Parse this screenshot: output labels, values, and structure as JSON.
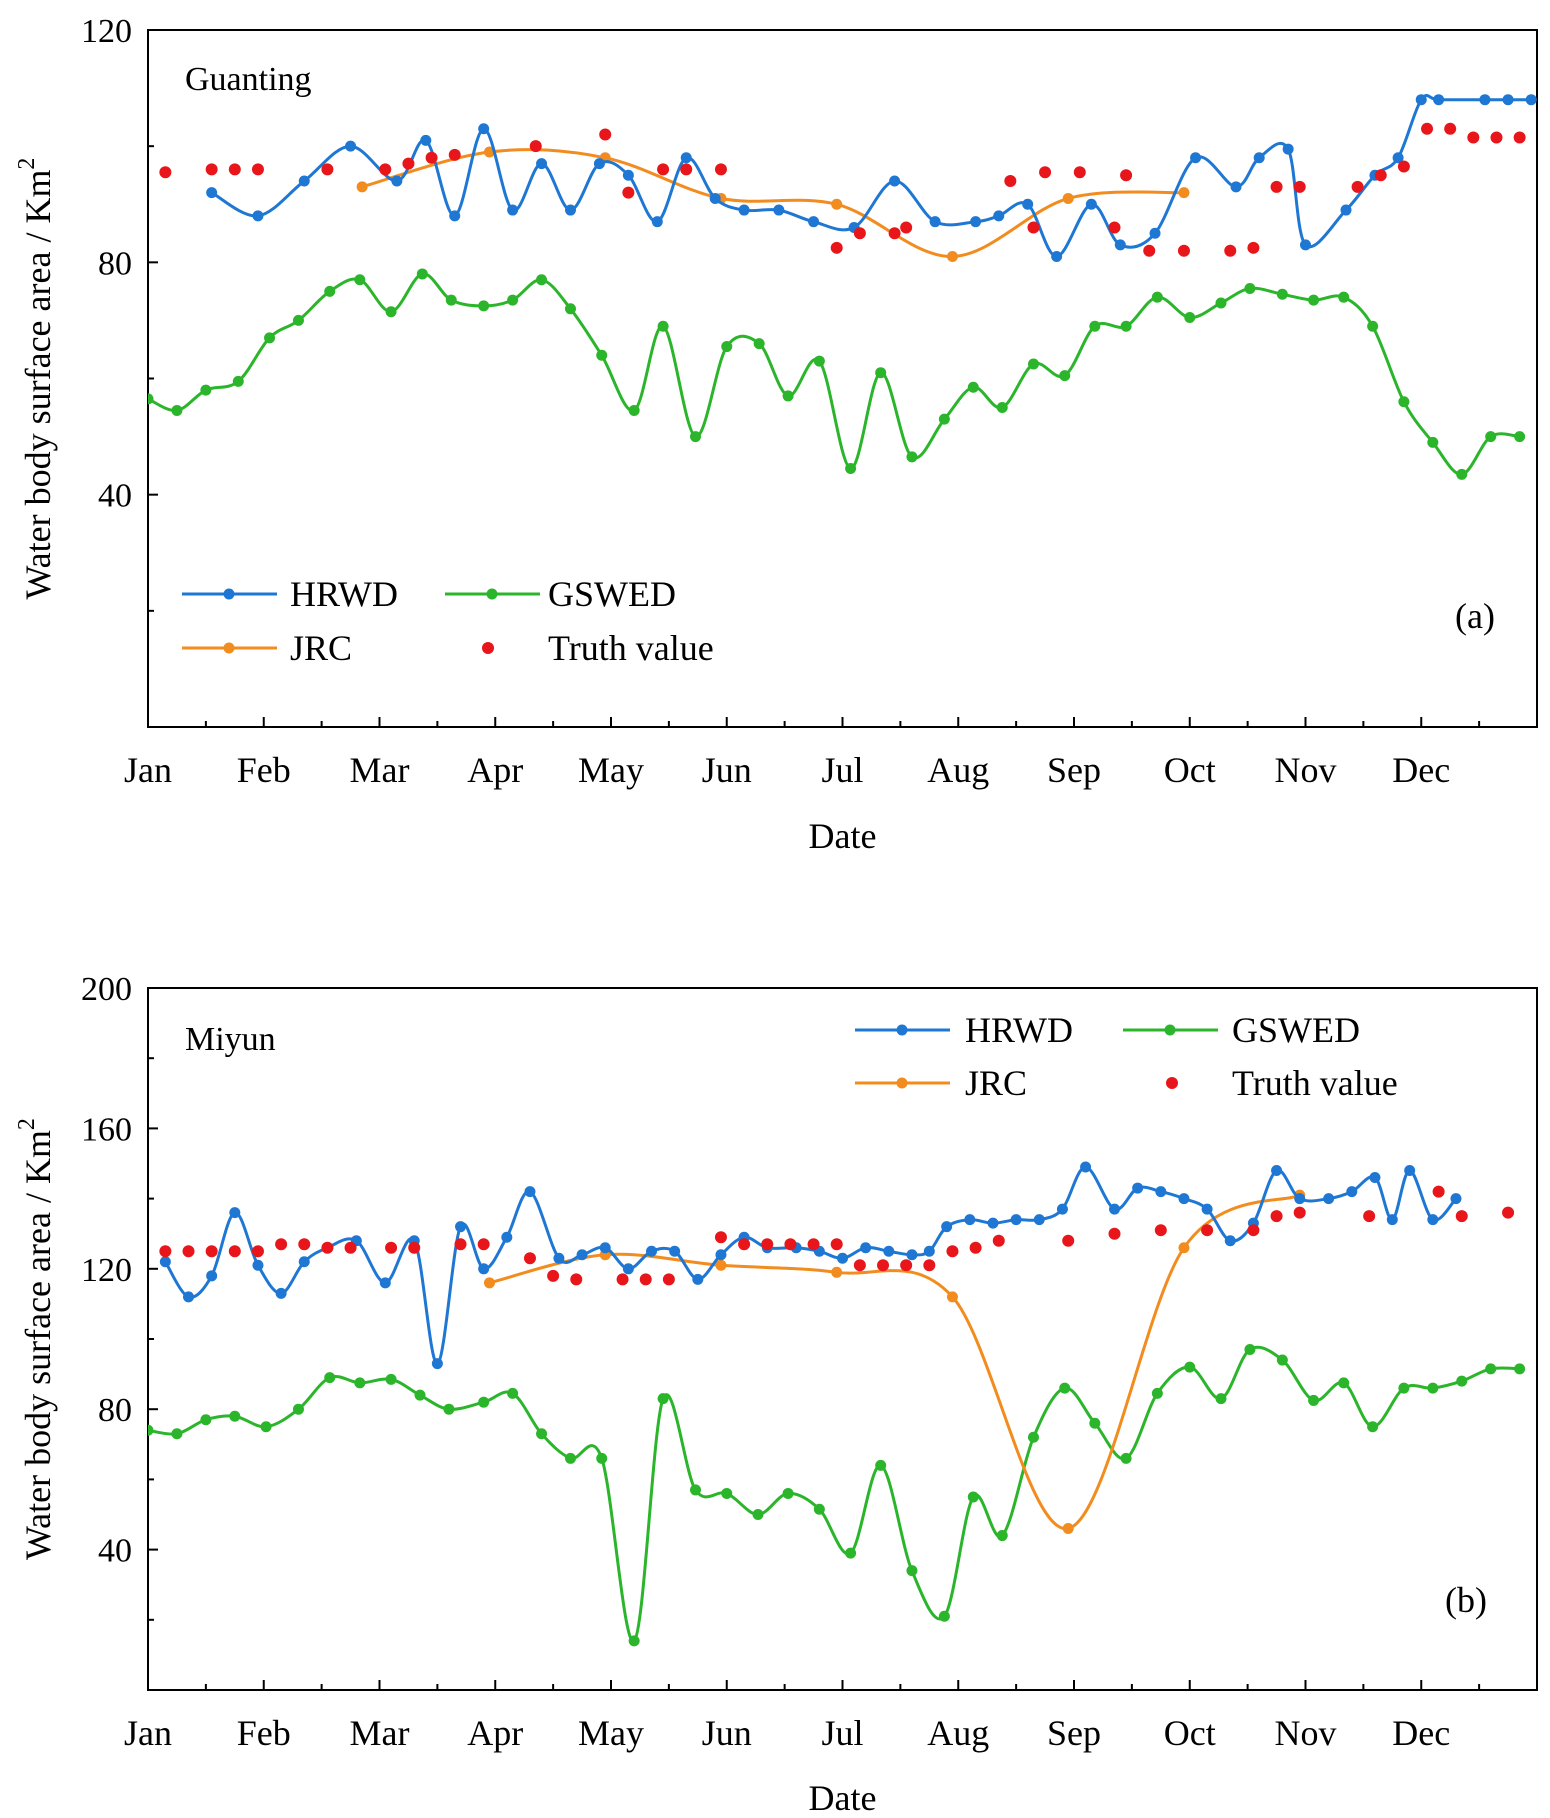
{
  "chart_data": [
    {
      "type": "line",
      "panel_label": "(a)",
      "site": "Guanting",
      "xlabel": "Date",
      "ylabel": "Water body surface area  / Km",
      "ylabel_sup": "2",
      "xlim": [
        0,
        12
      ],
      "ylim": [
        0,
        120
      ],
      "ytick_labels": [
        {
          "v": 40,
          "t": "40"
        },
        {
          "v": 80,
          "t": "80"
        },
        {
          "v": 120,
          "t": "120"
        }
      ],
      "yminor_ticks": [
        20,
        60,
        100
      ],
      "month_labels": [
        "Jan",
        "Feb",
        "Mar",
        "Apr",
        "May",
        "Jun",
        "Jul",
        "Aug",
        "Sep",
        "Oct",
        "Nov",
        "Dec"
      ],
      "legend": {
        "placement": "bottom-left",
        "rows": [
          [
            "HRWD",
            "GSWED"
          ],
          [
            "JRC",
            "Truth value"
          ]
        ]
      },
      "series": [
        {
          "name": "HRWD",
          "color": "#1f77d4",
          "style": "line-marker",
          "x": [
            0.55,
            0.95,
            1.35,
            1.75,
            2.15,
            2.4,
            2.65,
            2.9,
            3.15,
            3.4,
            3.65,
            3.9,
            4.15,
            4.4,
            4.65,
            4.9,
            5.15,
            5.45,
            5.75,
            6.1,
            6.45,
            6.8,
            7.15,
            7.35,
            7.6,
            7.85,
            8.15,
            8.4,
            8.7,
            9.05,
            9.4,
            9.6,
            9.85,
            10.0,
            10.35,
            10.6,
            10.8,
            11.0,
            11.15,
            11.55,
            11.75,
            11.95
          ],
          "values": [
            92,
            88,
            94,
            100,
            94,
            101,
            88,
            103,
            89,
            97,
            89,
            97,
            95,
            87,
            98,
            91,
            89,
            89,
            87,
            86,
            94,
            87,
            87,
            88,
            90,
            81,
            90,
            83,
            85,
            98,
            93,
            98,
            99.5,
            83,
            89,
            95,
            98,
            108,
            108,
            108,
            108,
            108
          ]
        },
        {
          "name": "GSWED",
          "color": "#2bb52b",
          "style": "line-marker",
          "x": [
            0.0,
            0.25,
            0.5,
            0.78,
            1.05,
            1.3,
            1.57,
            1.83,
            2.1,
            2.37,
            2.62,
            2.9,
            3.15,
            3.4,
            3.65,
            3.92,
            4.2,
            4.45,
            4.73,
            5.0,
            5.28,
            5.53,
            5.8,
            6.07,
            6.33,
            6.6,
            6.88,
            7.13,
            7.38,
            7.65,
            7.92,
            8.18,
            8.45,
            8.72,
            9.0,
            9.27,
            9.52,
            9.8,
            10.07,
            10.33,
            10.58,
            10.85,
            11.1,
            11.35,
            11.6,
            11.85
          ],
          "values": [
            56.5,
            54.5,
            58,
            59.5,
            67,
            70,
            75,
            77,
            71.5,
            78,
            73.5,
            72.5,
            73.5,
            77,
            72,
            64,
            54.5,
            69,
            50,
            65.5,
            66,
            57,
            63,
            44.5,
            61,
            46.5,
            53,
            58.5,
            55,
            62.5,
            60.5,
            69,
            69,
            74,
            70.5,
            73,
            75.5,
            74.5,
            73.5,
            74,
            69,
            56,
            49,
            43.5,
            50,
            50
          ]
        },
        {
          "name": "JRC",
          "color": "#f28c1e",
          "style": "line-marker",
          "x": [
            1.85,
            2.95,
            3.95,
            4.95,
            5.95,
            6.95,
            7.95,
            8.95
          ],
          "values": [
            93,
            99,
            98,
            91,
            90,
            81,
            91,
            92
          ]
        },
        {
          "name": "Truth value",
          "color": "#e8161a",
          "style": "scatter",
          "x": [
            0.15,
            0.55,
            0.75,
            0.95,
            1.55,
            2.05,
            2.25,
            2.45,
            2.65,
            3.35,
            3.95,
            4.15,
            4.45,
            4.65,
            4.95,
            5.95,
            6.15,
            6.45,
            6.55,
            7.45,
            7.65,
            7.75,
            8.05,
            8.35,
            8.45,
            8.65,
            8.95,
            9.35,
            9.55,
            9.75,
            9.95,
            10.45,
            10.65,
            10.85,
            11.05,
            11.25,
            11.45,
            11.65,
            11.85
          ],
          "values": [
            95.5,
            96,
            96,
            96,
            96,
            96,
            97,
            98,
            98.5,
            100,
            102,
            92,
            96,
            96,
            96,
            82.5,
            85,
            85,
            86,
            94,
            86,
            95.5,
            95.5,
            86,
            95,
            82,
            82,
            82,
            82.5,
            93,
            93,
            93,
            95,
            96.5,
            103,
            103,
            101.5,
            101.5,
            101.5
          ]
        }
      ]
    },
    {
      "type": "line",
      "panel_label": "(b)",
      "site": "Miyun",
      "xlabel": "Date",
      "ylabel": "Water body surface area / Km",
      "ylabel_sup": "2",
      "xlim": [
        0,
        12
      ],
      "ylim": [
        0,
        200
      ],
      "ytick_labels": [
        {
          "v": 40,
          "t": "40"
        },
        {
          "v": 80,
          "t": "80"
        },
        {
          "v": 120,
          "t": "120"
        },
        {
          "v": 160,
          "t": "160"
        },
        {
          "v": 200,
          "t": "200"
        }
      ],
      "yminor_ticks": [
        20,
        60,
        100,
        140,
        180
      ],
      "month_labels": [
        "Jan",
        "Feb",
        "Mar",
        "Apr",
        "May",
        "Jun",
        "Jul",
        "Aug",
        "Sep",
        "Oct",
        "Nov",
        "Dec"
      ],
      "legend": {
        "placement": "top-right",
        "rows": [
          [
            "HRWD",
            "GSWED"
          ],
          [
            "JRC",
            "Truth value"
          ]
        ]
      },
      "series": [
        {
          "name": "HRWD",
          "color": "#1f77d4",
          "style": "line-marker",
          "x": [
            0.15,
            0.35,
            0.55,
            0.75,
            0.95,
            1.15,
            1.35,
            1.55,
            1.8,
            2.05,
            2.3,
            2.5,
            2.7,
            2.9,
            3.1,
            3.3,
            3.55,
            3.75,
            3.95,
            4.15,
            4.35,
            4.55,
            4.75,
            4.95,
            5.15,
            5.35,
            5.6,
            5.8,
            6.0,
            6.2,
            6.4,
            6.6,
            6.75,
            6.9,
            7.1,
            7.3,
            7.5,
            7.7,
            7.9,
            8.1,
            8.35,
            8.55,
            8.75,
            8.95,
            9.15,
            9.35,
            9.55,
            9.75,
            9.95,
            10.2,
            10.4,
            10.6,
            10.75,
            10.9,
            11.1,
            11.3
          ],
          "values": [
            122,
            112,
            118,
            136,
            121,
            113,
            122,
            126,
            128,
            116,
            128,
            93,
            132,
            120,
            129,
            142,
            123,
            124,
            126,
            120,
            125,
            125,
            117,
            124,
            129,
            126,
            126,
            125,
            123,
            126,
            125,
            124,
            125,
            132,
            134,
            133,
            134,
            134,
            137,
            149,
            137,
            143,
            142,
            140,
            137,
            128,
            133,
            148,
            140,
            140,
            142,
            146,
            134,
            148,
            134,
            140
          ]
        },
        {
          "name": "GSWED",
          "color": "#2bb52b",
          "style": "line-marker",
          "x": [
            0.0,
            0.25,
            0.5,
            0.75,
            1.02,
            1.3,
            1.57,
            1.83,
            2.1,
            2.35,
            2.6,
            2.9,
            3.15,
            3.4,
            3.65,
            3.92,
            4.2,
            4.45,
            4.73,
            5.0,
            5.27,
            5.53,
            5.8,
            6.07,
            6.33,
            6.6,
            6.88,
            7.13,
            7.38,
            7.65,
            7.92,
            8.18,
            8.45,
            8.72,
            9.0,
            9.27,
            9.52,
            9.8,
            10.07,
            10.33,
            10.58,
            10.85,
            11.1,
            11.35,
            11.6,
            11.85
          ],
          "values": [
            74,
            73,
            77,
            78,
            75,
            80,
            89,
            87.5,
            88.5,
            84,
            80,
            82,
            84.5,
            73,
            66,
            66,
            14,
            83,
            57,
            56,
            50,
            56,
            51.5,
            39,
            64,
            34,
            21,
            55,
            44,
            72,
            86,
            76,
            66,
            84.5,
            92,
            83,
            97,
            94,
            82.5,
            87.5,
            75,
            86,
            86,
            88,
            91.5,
            91.5
          ]
        },
        {
          "name": "JRC",
          "color": "#f28c1e",
          "style": "line-marker",
          "x": [
            2.95,
            3.95,
            4.95,
            5.95,
            6.95,
            7.95,
            8.95,
            9.95
          ],
          "values": [
            116,
            124,
            121,
            119,
            112,
            46,
            126,
            141
          ]
        },
        {
          "name": "Truth value",
          "color": "#e8161a",
          "style": "scatter",
          "x": [
            0.15,
            0.35,
            0.55,
            0.75,
            0.95,
            1.15,
            1.35,
            1.55,
            1.75,
            2.1,
            2.3,
            2.7,
            2.9,
            3.3,
            3.5,
            3.7,
            4.1,
            4.3,
            4.5,
            4.95,
            5.15,
            5.35,
            5.55,
            5.75,
            5.95,
            6.15,
            6.35,
            6.55,
            6.75,
            6.95,
            7.15,
            7.35,
            7.95,
            8.35,
            8.75,
            9.15,
            9.55,
            9.75,
            9.95,
            10.55,
            11.15,
            11.35,
            11.75
          ],
          "values": [
            125,
            125,
            125,
            125,
            125,
            127,
            127,
            126,
            126,
            126,
            126,
            127,
            127,
            123,
            118,
            117,
            117,
            117,
            117,
            129,
            127,
            127,
            127,
            127,
            127,
            121,
            121,
            121,
            121,
            125,
            126,
            128,
            128,
            130,
            131,
            131,
            131,
            135,
            136,
            135,
            142,
            135,
            136
          ]
        }
      ]
    }
  ]
}
